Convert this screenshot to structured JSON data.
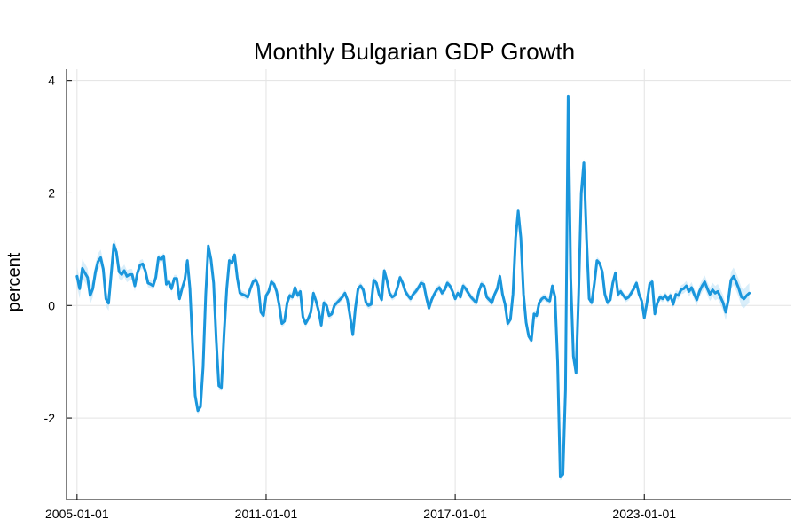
{
  "chart_data": {
    "type": "line",
    "title": "Monthly Bulgarian GDP Growth",
    "xlabel": "",
    "ylabel": "percent",
    "x_ticks": [
      "2005-01-01",
      "2011-01-01",
      "2017-01-01",
      "2023-01-01"
    ],
    "y_ticks": [
      -2,
      0,
      2,
      4
    ],
    "ylim": [
      -3.45,
      4.2
    ],
    "xlim": [
      "2004-09-01",
      "2027-09-01"
    ],
    "grid": true,
    "legend": "none",
    "colors": {
      "line": "#1a96dc",
      "band": "#bfe3f7",
      "grid": "#e3e3e3",
      "axis": "#000000"
    },
    "series": [
      {
        "x_start": "2005-01-01",
        "frequency": "monthly",
        "values": [
          0.52,
          0.3,
          0.66,
          0.58,
          0.5,
          0.18,
          0.3,
          0.6,
          0.78,
          0.85,
          0.65,
          0.12,
          0.04,
          0.55,
          1.08,
          0.95,
          0.6,
          0.55,
          0.62,
          0.52,
          0.55,
          0.55,
          0.35,
          0.58,
          0.72,
          0.74,
          0.62,
          0.4,
          0.38,
          0.35,
          0.5,
          0.85,
          0.82,
          0.88,
          0.38,
          0.42,
          0.3,
          0.48,
          0.48,
          0.12,
          0.3,
          0.45,
          0.8,
          0.3,
          -0.7,
          -1.6,
          -1.87,
          -1.8,
          -1.1,
          0.2,
          1.06,
          0.82,
          0.4,
          -0.6,
          -1.43,
          -1.46,
          -0.5,
          0.3,
          0.8,
          0.76,
          0.9,
          0.5,
          0.22,
          0.2,
          0.18,
          0.15,
          0.3,
          0.42,
          0.46,
          0.35,
          -0.12,
          -0.18,
          0.18,
          0.25,
          0.42,
          0.38,
          0.25,
          0.0,
          -0.32,
          -0.28,
          0.05,
          0.18,
          0.15,
          0.32,
          0.18,
          0.25,
          -0.2,
          -0.32,
          -0.24,
          -0.12,
          0.22,
          0.08,
          -0.1,
          -0.35,
          0.05,
          0.0,
          -0.18,
          -0.15,
          0.0,
          0.05,
          0.1,
          0.15,
          0.22,
          0.1,
          -0.2,
          -0.52,
          -0.05,
          0.3,
          0.35,
          0.28,
          0.05,
          0.0,
          0.02,
          0.45,
          0.4,
          0.2,
          0.1,
          0.62,
          0.45,
          0.22,
          0.15,
          0.18,
          0.32,
          0.5,
          0.4,
          0.25,
          0.18,
          0.12,
          0.2,
          0.25,
          0.32,
          0.4,
          0.38,
          0.15,
          -0.05,
          0.1,
          0.2,
          0.28,
          0.32,
          0.22,
          0.28,
          0.4,
          0.35,
          0.25,
          0.12,
          0.22,
          0.15,
          0.35,
          0.3,
          0.22,
          0.15,
          0.1,
          0.05,
          0.25,
          0.38,
          0.35,
          0.15,
          0.1,
          0.05,
          0.2,
          0.3,
          0.52,
          0.2,
          0.02,
          -0.32,
          -0.25,
          0.2,
          1.2,
          1.68,
          1.2,
          0.2,
          -0.3,
          -0.55,
          -0.62,
          -0.15,
          -0.18,
          0.05,
          0.12,
          0.15,
          0.1,
          0.08,
          0.35,
          0.15,
          -1.0,
          -3.05,
          -3.0,
          -1.5,
          3.72,
          0.5,
          -0.9,
          -1.2,
          0.2,
          2.0,
          2.55,
          1.2,
          0.12,
          0.05,
          0.4,
          0.8,
          0.75,
          0.6,
          0.2,
          0.05,
          0.1,
          0.4,
          0.58,
          0.2,
          0.25,
          0.18,
          0.12,
          0.15,
          0.22,
          0.3,
          0.4,
          0.2,
          0.08,
          -0.22,
          0.05,
          0.38,
          0.42,
          -0.15,
          0.05,
          0.15,
          0.12,
          0.18,
          0.1,
          0.18,
          0.02,
          0.2,
          0.18,
          0.28,
          0.3,
          0.35,
          0.25,
          0.32,
          0.2,
          0.1,
          0.25,
          0.35,
          0.42,
          0.3,
          0.2,
          0.28,
          0.22,
          0.25,
          0.15,
          0.05,
          -0.12,
          0.1,
          0.45,
          0.52,
          0.42,
          0.3,
          0.15,
          0.12,
          0.18,
          0.22
        ]
      }
    ]
  }
}
